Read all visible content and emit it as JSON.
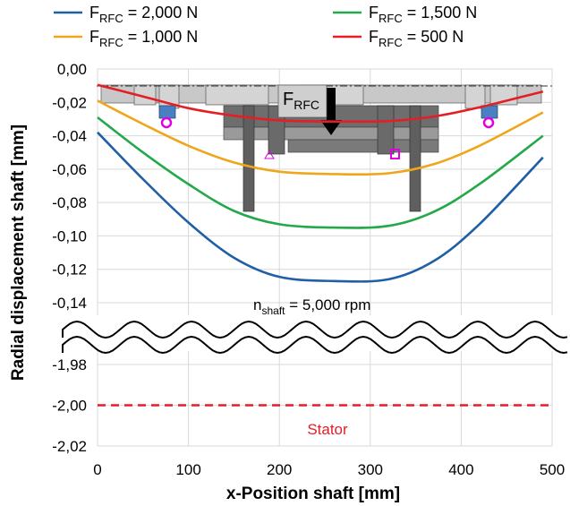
{
  "chart_data": {
    "type": "line",
    "xlabel": "x-Position shaft [mm]",
    "ylabel": "Radial displacement shaft [mm]",
    "xlim": [
      0,
      500
    ],
    "x_ticks": [
      "0",
      "100",
      "200",
      "300",
      "400",
      "500"
    ],
    "y_ticks_upper": [
      "0,00",
      "-0,02",
      "-0,04",
      "-0,06",
      "-0,08",
      "-0,10",
      "-0,12",
      "-0,14"
    ],
    "y_ticks_lower": [
      "-1,98",
      "-2,00",
      "-2,02"
    ],
    "ylim_upper": [
      -0.14,
      0.0
    ],
    "ylim_lower": [
      -2.02,
      -1.98
    ],
    "grid": true,
    "axis_break": true,
    "legend_position": "top",
    "series": [
      {
        "name_main": "F",
        "name_sub": "RFC",
        "name_value": " = 2,000 N",
        "color": "#1f5fa6",
        "x": [
          0,
          50,
          100,
          150,
          200,
          260,
          320,
          370,
          420,
          490
        ],
        "y": [
          -0.038,
          -0.066,
          -0.092,
          -0.113,
          -0.1245,
          -0.127,
          -0.126,
          -0.115,
          -0.093,
          -0.053
        ]
      },
      {
        "name_main": "F",
        "name_sub": "RFC",
        "name_value": " = 1,000 N",
        "color": "#f0a61a",
        "x": [
          0,
          50,
          100,
          150,
          200,
          260,
          320,
          370,
          420,
          490
        ],
        "y": [
          -0.019,
          -0.033,
          -0.046,
          -0.056,
          -0.0615,
          -0.063,
          -0.0625,
          -0.057,
          -0.046,
          -0.026
        ]
      },
      {
        "name_main": "F",
        "name_sub": "RFC",
        "name_value": " = 1,500 N",
        "color": "#23a84a",
        "x": [
          0,
          50,
          100,
          150,
          200,
          260,
          320,
          370,
          420,
          490
        ],
        "y": [
          -0.029,
          -0.05,
          -0.069,
          -0.085,
          -0.093,
          -0.095,
          -0.094,
          -0.0855,
          -0.069,
          -0.04
        ]
      },
      {
        "name_main": "F",
        "name_sub": "RFC",
        "name_value": " = 500 N",
        "color": "#e31e24",
        "x": [
          0,
          50,
          100,
          150,
          200,
          260,
          320,
          370,
          420,
          490
        ],
        "y": [
          -0.0095,
          -0.0165,
          -0.0235,
          -0.028,
          -0.0308,
          -0.0315,
          -0.0312,
          -0.0285,
          -0.023,
          -0.0135
        ]
      }
    ],
    "reference_line": {
      "label": "Stator",
      "y": -2.0,
      "color": "#e31e24"
    },
    "annotations": {
      "speed_main": "n",
      "speed_sub": "shaft",
      "speed_value": " = 5,000 rpm",
      "force_main": "F",
      "force_sub": "RFC"
    }
  }
}
